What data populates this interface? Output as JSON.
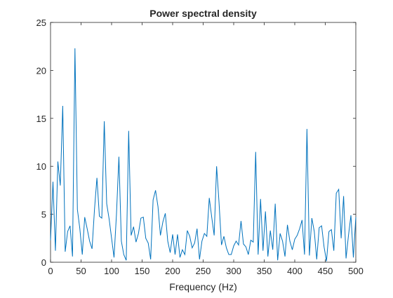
{
  "chart_data": {
    "type": "line",
    "title": "Power spectral density",
    "xlabel": "Frequency (Hz)",
    "x": [
      0,
      4,
      8,
      12,
      16,
      20,
      24,
      28,
      32,
      36,
      40,
      44,
      48,
      52,
      56,
      60,
      64,
      68,
      72,
      76,
      80,
      84,
      88,
      92,
      96,
      100,
      104,
      108,
      112,
      116,
      120,
      124,
      128,
      132,
      136,
      140,
      144,
      148,
      152,
      156,
      160,
      164,
      168,
      172,
      176,
      180,
      184,
      188,
      192,
      196,
      200,
      204,
      208,
      212,
      216,
      220,
      224,
      228,
      232,
      236,
      240,
      244,
      248,
      252,
      256,
      260,
      264,
      268,
      272,
      276,
      280,
      284,
      288,
      292,
      296,
      300,
      304,
      308,
      312,
      316,
      320,
      324,
      328,
      332,
      336,
      340,
      344,
      348,
      352,
      356,
      360,
      364,
      368,
      372,
      376,
      380,
      384,
      388,
      392,
      396,
      400,
      404,
      408,
      412,
      416,
      420,
      424,
      428,
      432,
      436,
      440,
      444,
      448,
      452,
      456,
      460,
      464,
      468,
      472,
      476,
      480,
      484,
      488,
      492,
      496,
      500
    ],
    "series": [
      {
        "color": "#0072bd",
        "values": [
          2.3,
          8.4,
          1.2,
          10.5,
          8,
          16.3,
          1.1,
          3.2,
          3.8,
          0.6,
          22.3,
          5.5,
          3.5,
          0.8,
          4.7,
          3.5,
          2.2,
          1.4,
          5.5,
          8.8,
          4.8,
          4.6,
          14.7,
          6.1,
          4.5,
          2.5,
          0.5,
          5,
          11,
          2.2,
          0.8,
          0.2,
          13.7,
          2.8,
          3.7,
          2.1,
          3,
          4.6,
          4.7,
          2.5,
          2,
          0.3,
          6.5,
          7.5,
          5.8,
          2.8,
          4.2,
          5.1,
          2.2,
          1,
          2.9,
          0.8,
          2.9,
          0.5,
          1.3,
          0.8,
          3.3,
          2.7,
          1.5,
          2,
          3.5,
          0.3,
          2.2,
          3,
          2.7,
          6.7,
          4.7,
          2.8,
          10,
          6.2,
          1.8,
          2.7,
          1.5,
          0.8,
          0.8,
          1.7,
          2.2,
          1.8,
          4.3,
          1.9,
          1.6,
          0.8,
          2.3,
          2.1,
          11.5,
          0.8,
          6.6,
          1.2,
          5.3,
          0.6,
          3.3,
          1.3,
          6.1,
          0.2,
          3,
          2.2,
          0.6,
          3.9,
          2.2,
          1.3,
          2.4,
          2.8,
          3.5,
          4.4,
          0.8,
          13.9,
          0.7,
          4.6,
          3.2,
          0.3,
          3.6,
          3.8,
          1.6,
          0.1,
          3.2,
          3.4,
          1.2,
          7.2,
          7.6,
          2.5,
          6.9,
          0.4,
          2.8,
          4.9,
          0.5,
          4.7
        ]
      }
    ],
    "xlim": [
      0,
      500
    ],
    "xticks": [
      0,
      50,
      100,
      150,
      200,
      250,
      300,
      350,
      400,
      450,
      500
    ],
    "ylim": [
      0,
      25
    ],
    "yticks": [
      0,
      5,
      10,
      15,
      20,
      25
    ]
  }
}
